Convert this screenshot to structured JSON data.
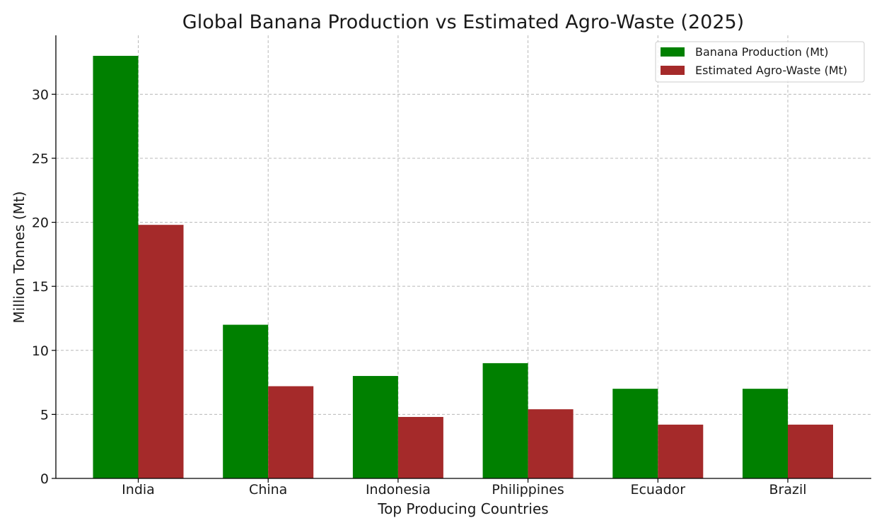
{
  "chart_data": {
    "type": "bar",
    "title": "Global Banana Production vs Estimated Agro-Waste (2025)",
    "xlabel": "Top Producing Countries",
    "ylabel": "Million Tonnes (Mt)",
    "categories": [
      "India",
      "China",
      "Indonesia",
      "Philippines",
      "Ecuador",
      "Brazil"
    ],
    "series": [
      {
        "name": "Banana Production (Mt)",
        "color": "#008000",
        "values": [
          33,
          12,
          8,
          9,
          7,
          7
        ]
      },
      {
        "name": "Estimated Agro-Waste (Mt)",
        "color": "#a52a2a",
        "values": [
          19.8,
          7.2,
          4.8,
          5.4,
          4.2,
          4.2
        ]
      }
    ],
    "ylim": [
      0,
      34.6
    ],
    "yticks": [
      0,
      5,
      10,
      15,
      20,
      25,
      30
    ],
    "grid": true,
    "legend_position": "top-right"
  }
}
